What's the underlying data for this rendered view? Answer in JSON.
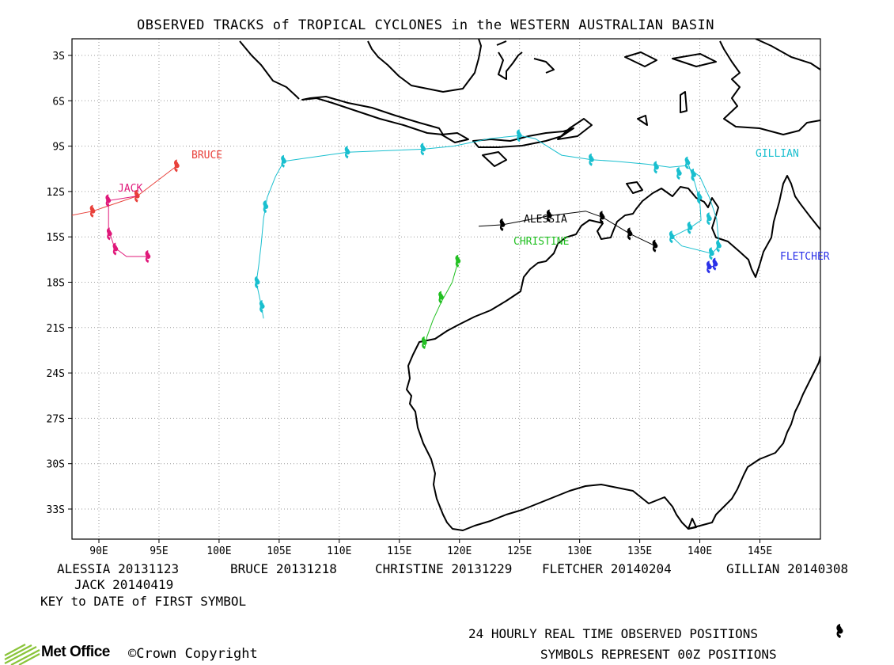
{
  "title": "OBSERVED TRACKS of TROPICAL CYCLONES in the WESTERN AUSTRALIAN BASIN",
  "lat_ticks": [
    "3S",
    "6S",
    "9S",
    "12S",
    "15S",
    "18S",
    "21S",
    "24S",
    "27S",
    "30S",
    "33S"
  ],
  "lon_ticks": [
    "90E",
    "95E",
    "100E",
    "105E",
    "110E",
    "115E",
    "120E",
    "125E",
    "130E",
    "135E",
    "140E",
    "145E"
  ],
  "storm_key": [
    {
      "name": "ALESSIA",
      "date": "20131123"
    },
    {
      "name": "BRUCE",
      "date": "20131218"
    },
    {
      "name": "CHRISTINE",
      "date": "20131229"
    },
    {
      "name": "FLETCHER",
      "date": "20140204"
    },
    {
      "name": "GILLIAN",
      "date": "20140308"
    },
    {
      "name": "JACK",
      "date": "20140419"
    }
  ],
  "key_note": "KEY to DATE of FIRST SYMBOL",
  "legend_line1": "24 HOURLY REAL TIME OBSERVED POSITIONS",
  "legend_line2": "SYMBOLS REPRESENT 00Z POSITIONS",
  "brand": "Met Office",
  "copyright": "©Crown Copyright",
  "colors": {
    "ALESSIA": "#000000",
    "BRUCE": "#e8403a",
    "CHRISTINE": "#22c022",
    "FLETCHER": "#2a30e8",
    "GILLIAN": "#19bfcf",
    "JACK": "#e0187a",
    "grid": "#9a9a9a",
    "coast": "#000000",
    "brand": "#8ac43a"
  },
  "storms": [
    {
      "name": "ALESSIA",
      "label": "ALESSIA",
      "color": "#000000",
      "track": [
        [
          121.6,
          -14.3
        ],
        [
          123.6,
          -14.2
        ],
        [
          127.5,
          -13.6
        ],
        [
          130.5,
          -13.3
        ],
        [
          131.9,
          -13.7
        ],
        [
          134.2,
          -14.8
        ],
        [
          136.3,
          -15.6
        ]
      ],
      "fixes": [
        [
          123.6,
          -14.2
        ],
        [
          127.5,
          -13.6
        ],
        [
          131.9,
          -13.7
        ],
        [
          134.2,
          -14.8
        ],
        [
          136.3,
          -15.6
        ]
      ]
    },
    {
      "name": "BRUCE",
      "label": "BRUCE",
      "color": "#e8403a",
      "track": [
        [
          96.5,
          -10.3
        ],
        [
          93.2,
          -12.3
        ],
        [
          89.5,
          -13.3
        ],
        [
          85,
          -14
        ],
        [
          80,
          -15
        ]
      ],
      "fixes": [
        [
          96.5,
          -10.3
        ],
        [
          93.2,
          -12.3
        ],
        [
          89.5,
          -13.3
        ]
      ]
    },
    {
      "name": "CHRISTINE",
      "label": "CHRISTINE",
      "color": "#22c022",
      "track": [
        [
          119.9,
          -16.6
        ],
        [
          119.4,
          -18
        ],
        [
          118.5,
          -19.3
        ],
        [
          117.8,
          -20.5
        ],
        [
          117.3,
          -21.6
        ],
        [
          117.1,
          -22.4
        ]
      ],
      "fixes": [
        [
          119.9,
          -16.6
        ],
        [
          118.5,
          -19
        ],
        [
          117.1,
          -22
        ]
      ]
    },
    {
      "name": "FLETCHER",
      "label": "FLETCHER",
      "color": "#2a30e8",
      "track": [
        [
          140.8,
          -17.0
        ],
        [
          141.4,
          -16.9
        ]
      ],
      "fixes": [
        [
          140.8,
          -17.0
        ],
        [
          141.3,
          -16.8
        ]
      ]
    },
    {
      "name": "GILLIAN",
      "label": "GILLIAN",
      "color": "#19bfcf",
      "track": [
        [
          139,
          -10.1
        ],
        [
          139.5,
          -11.2
        ],
        [
          140,
          -12.6
        ],
        [
          140.1,
          -13.9
        ],
        [
          139.2,
          -14.4
        ],
        [
          137.7,
          -15
        ],
        [
          138.5,
          -15.6
        ],
        [
          141,
          -16.1
        ],
        [
          141.6,
          -15.6
        ],
        [
          141.4,
          -13.8
        ],
        [
          140.8,
          -12.4
        ],
        [
          140,
          -11
        ],
        [
          138.8,
          -10.3
        ],
        [
          137.5,
          -10.4
        ],
        [
          135.7,
          -10.2
        ],
        [
          133,
          -10
        ],
        [
          131,
          -9.9
        ],
        [
          128.5,
          -9.6
        ],
        [
          126.3,
          -8.5
        ],
        [
          125,
          -8.3
        ],
        [
          122.5,
          -8.5
        ],
        [
          119.5,
          -9
        ],
        [
          117,
          -9.2
        ],
        [
          110.7,
          -9.4
        ],
        [
          105.4,
          -10
        ],
        [
          104.7,
          -11
        ],
        [
          104,
          -12.4
        ],
        [
          103.7,
          -13.8
        ],
        [
          103.5,
          -15.5
        ],
        [
          103.3,
          -16.9
        ],
        [
          103.1,
          -18
        ],
        [
          103.5,
          -19.5
        ],
        [
          103.7,
          -20.4
        ]
      ],
      "fixes": [
        [
          139,
          -10.1
        ],
        [
          139.5,
          -10.9
        ],
        [
          140,
          -12.4
        ],
        [
          140.8,
          -13.8
        ],
        [
          139.2,
          -14.4
        ],
        [
          137.7,
          -15.0
        ],
        [
          141.6,
          -15.6
        ],
        [
          141,
          -16.1
        ],
        [
          138.3,
          -10.8
        ],
        [
          136.4,
          -10.4
        ],
        [
          131,
          -9.9
        ],
        [
          125,
          -8.3
        ],
        [
          117,
          -9.2
        ],
        [
          110.7,
          -9.4
        ],
        [
          105.4,
          -10
        ],
        [
          103.9,
          -13
        ],
        [
          103.2,
          -18
        ],
        [
          103.6,
          -19.6
        ]
      ]
    },
    {
      "name": "JACK",
      "label": "JACK",
      "color": "#e0187a",
      "track": [
        [
          93.2,
          -12.3
        ],
        [
          90.8,
          -12.6
        ],
        [
          90.8,
          -14.5
        ],
        [
          91.3,
          -15.7
        ],
        [
          92.3,
          -16.3
        ],
        [
          94.1,
          -16.3
        ]
      ],
      "fixes": [
        [
          90.8,
          -12.6
        ],
        [
          90.9,
          -14.8
        ],
        [
          91.4,
          -15.8
        ],
        [
          94.1,
          -16.3
        ]
      ]
    }
  ]
}
